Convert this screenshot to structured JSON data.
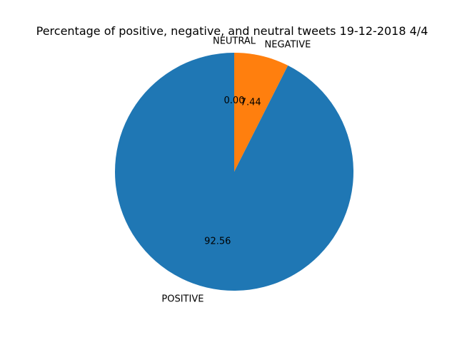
{
  "chart_data": {
    "type": "pie",
    "title": "Percentage of positive, negative, and neutral tweets 19-12-2018 4/4",
    "slices": [
      {
        "label": "NEUTRAL",
        "value": 0.0,
        "pct_label": "0.00",
        "color": "#2ca02c"
      },
      {
        "label": "NEGATIVE",
        "value": 7.44,
        "pct_label": "7.44",
        "color": "#ff7f0e"
      },
      {
        "label": "POSITIVE",
        "value": 92.56,
        "pct_label": "92.56",
        "color": "#1f77b4"
      }
    ],
    "start_angle_deg": 90,
    "direction": "clockwise",
    "legend": "none"
  }
}
